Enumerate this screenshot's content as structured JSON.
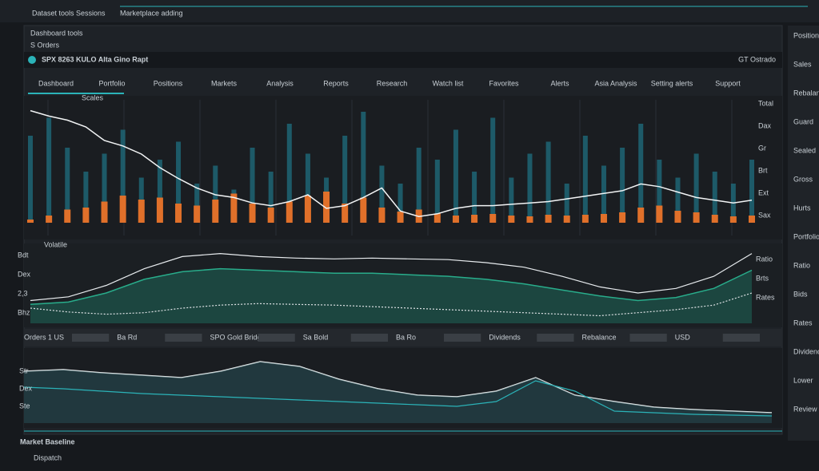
{
  "top_bar": {
    "items": [
      "Dataset tools",
      "Sessions",
      "Marketplace adding"
    ]
  },
  "header": {
    "title": "Dashboard tools",
    "subtitle": "S Orders"
  },
  "ticker": {
    "symbol": "SPX 8263 KULO Alta Gino Rapt",
    "status": "GT Ostrado"
  },
  "tabs": [
    "Dashboard",
    "Portfolio",
    "Positions",
    "Markets",
    "Analysis",
    "Reports",
    "Research",
    "Watch list",
    "Favorites",
    "Alerts",
    "Asia Analysis",
    "Setting alerts",
    "Support"
  ],
  "price_chart": {
    "label": "Scales",
    "right_labels": [
      "Total",
      "Dax",
      "Gr",
      "Brt",
      "Ext",
      "Sax"
    ],
    "line": [
      92,
      88,
      85,
      80,
      70,
      66,
      60,
      50,
      42,
      35,
      30,
      28,
      24,
      22,
      25,
      30,
      20,
      22,
      28,
      35,
      18,
      14,
      16,
      20,
      22,
      22,
      23,
      24,
      25,
      27,
      29,
      31,
      33,
      38,
      36,
      32,
      28,
      26,
      24,
      26
    ],
    "volume": [
      70,
      85,
      60,
      40,
      55,
      75,
      35,
      50,
      65,
      30,
      45,
      25,
      60,
      40,
      80,
      55,
      35,
      70,
      90,
      45,
      30,
      60,
      50,
      75,
      40,
      85,
      35,
      55,
      65,
      30,
      70,
      45,
      60,
      80,
      50,
      35,
      55,
      40,
      30,
      50
    ],
    "candles": [
      0,
      10,
      25,
      30,
      45,
      60,
      50,
      55,
      40,
      35,
      50,
      65,
      40,
      30,
      45,
      60,
      70,
      40,
      55,
      30,
      20,
      25,
      15,
      10,
      12,
      14,
      10,
      8,
      12,
      10,
      12,
      14,
      18,
      30,
      35,
      22,
      18,
      12,
      8,
      10
    ]
  },
  "volume_chart": {
    "label": "Volatile",
    "left_labels": [
      "Bdt",
      "Dex",
      "2,3",
      "Bhz"
    ],
    "right_labels": [
      "Ratio",
      "Brts",
      "Rates"
    ],
    "upper": [
      30,
      35,
      50,
      72,
      88,
      92,
      88,
      86,
      85,
      86,
      85,
      84,
      80,
      74,
      62,
      48,
      40,
      46,
      62,
      92
    ],
    "band": [
      25,
      28,
      40,
      58,
      68,
      72,
      70,
      68,
      66,
      66,
      64,
      62,
      58,
      52,
      44,
      36,
      30,
      34,
      46,
      70
    ],
    "dotted": [
      20,
      15,
      12,
      14,
      20,
      24,
      26,
      25,
      24,
      22,
      20,
      18,
      16,
      14,
      12,
      10,
      14,
      18,
      24,
      40
    ]
  },
  "toolbar": [
    "Orders 1 US",
    "Ba Rd",
    "SPO Gold Bridger",
    "Sa Bold",
    "Ba Ro",
    "Dividends",
    "Rebalance",
    "USD"
  ],
  "flow_chart": {
    "left_labels": [
      "Str",
      "Dex",
      "Ste"
    ],
    "white": [
      60,
      62,
      58,
      55,
      52,
      60,
      72,
      66,
      50,
      38,
      30,
      28,
      35,
      52,
      30,
      22,
      15,
      12,
      10,
      8
    ],
    "teal": [
      40,
      38,
      35,
      32,
      30,
      28,
      26,
      24,
      22,
      20,
      18,
      16,
      22,
      48,
      35,
      10,
      8,
      6,
      5,
      4
    ]
  },
  "footer": {
    "title": "Market Baseline",
    "subtitle": "Dispatch"
  },
  "sidebar": [
    "Positions",
    "Sales",
    "Rebalance",
    "Guard",
    "Sealed",
    "Gross",
    "Hurts",
    "Portfolio",
    "Ratio",
    "Bids",
    "Rates",
    "Dividends",
    "Lower",
    "Review"
  ]
}
